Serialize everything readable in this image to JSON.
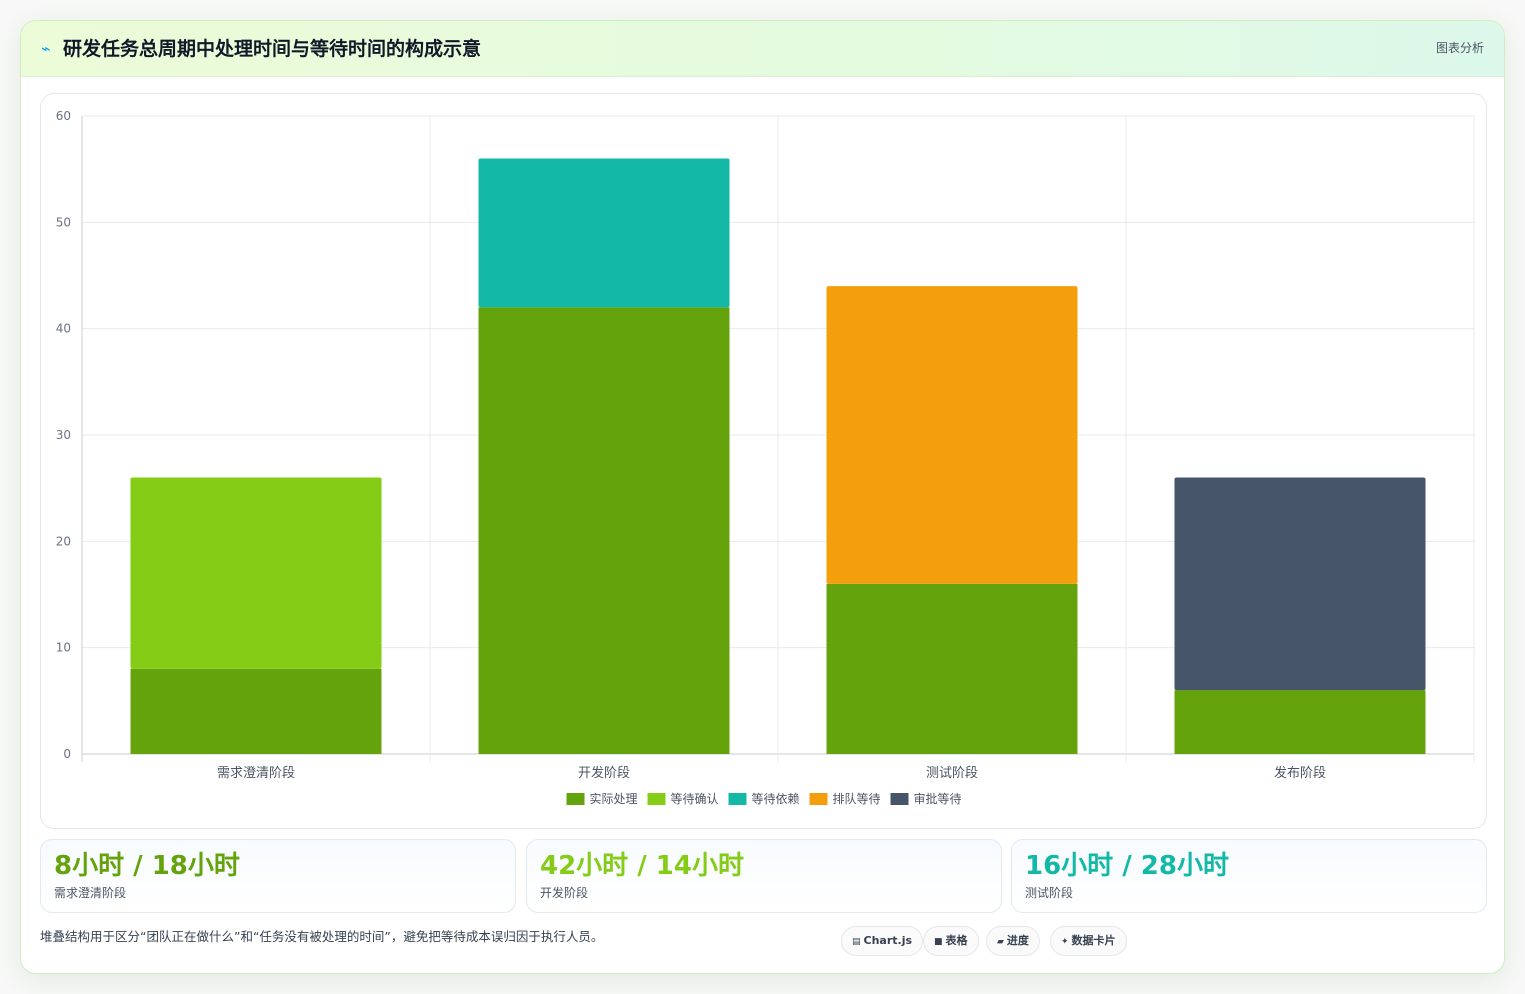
{
  "header": {
    "icon": "chart-line-icon",
    "title": "研发任务总周期中处理时间与等待时间的构成示意",
    "tag": "图表分析"
  },
  "chart_data": {
    "type": "bar",
    "stacked": true,
    "categories": [
      "需求澄清阶段",
      "开发阶段",
      "测试阶段",
      "发布阶段"
    ],
    "series": [
      {
        "name": "实际处理",
        "color": "#65a30d",
        "values": [
          8,
          42,
          16,
          6
        ]
      },
      {
        "name": "等待确认",
        "color": "#84cc16",
        "values": [
          18,
          0,
          0,
          0
        ]
      },
      {
        "name": "等待依赖",
        "color": "#14b8a6",
        "values": [
          0,
          14,
          0,
          0
        ]
      },
      {
        "name": "排队等待",
        "color": "#f59e0b",
        "values": [
          0,
          0,
          28,
          0
        ]
      },
      {
        "name": "审批等待",
        "color": "#475569",
        "values": [
          0,
          0,
          0,
          20
        ]
      }
    ],
    "yticks": [
      0,
      10,
      20,
      30,
      40,
      50,
      60
    ],
    "ylim": [
      0,
      60
    ],
    "grid": true,
    "legend": "bottom"
  },
  "stats": [
    {
      "value": "8小时 / 18小时",
      "label": "需求澄清阶段",
      "color": "#65a30d"
    },
    {
      "value": "42小时 / 14小时",
      "label": "开发阶段",
      "color": "#84cc16"
    },
    {
      "value": "16小时 / 28小时",
      "label": "测试阶段",
      "color": "#14b8a6"
    }
  ],
  "note": "堆叠结构用于区分“团队正在做什么”和“任务没有被处理的时间”，避免把等待成本误归因于执行人员。",
  "pills": [
    {
      "icon": "chart-icon",
      "glyph": "▤",
      "label": "Chart.js"
    },
    {
      "icon": "table-icon",
      "glyph": "■",
      "label": "表格"
    },
    {
      "icon": "progress-icon",
      "glyph": "▰",
      "label": "进度"
    },
    {
      "icon": "sparkle-icon",
      "glyph": "✦",
      "label": "数据卡片"
    }
  ]
}
